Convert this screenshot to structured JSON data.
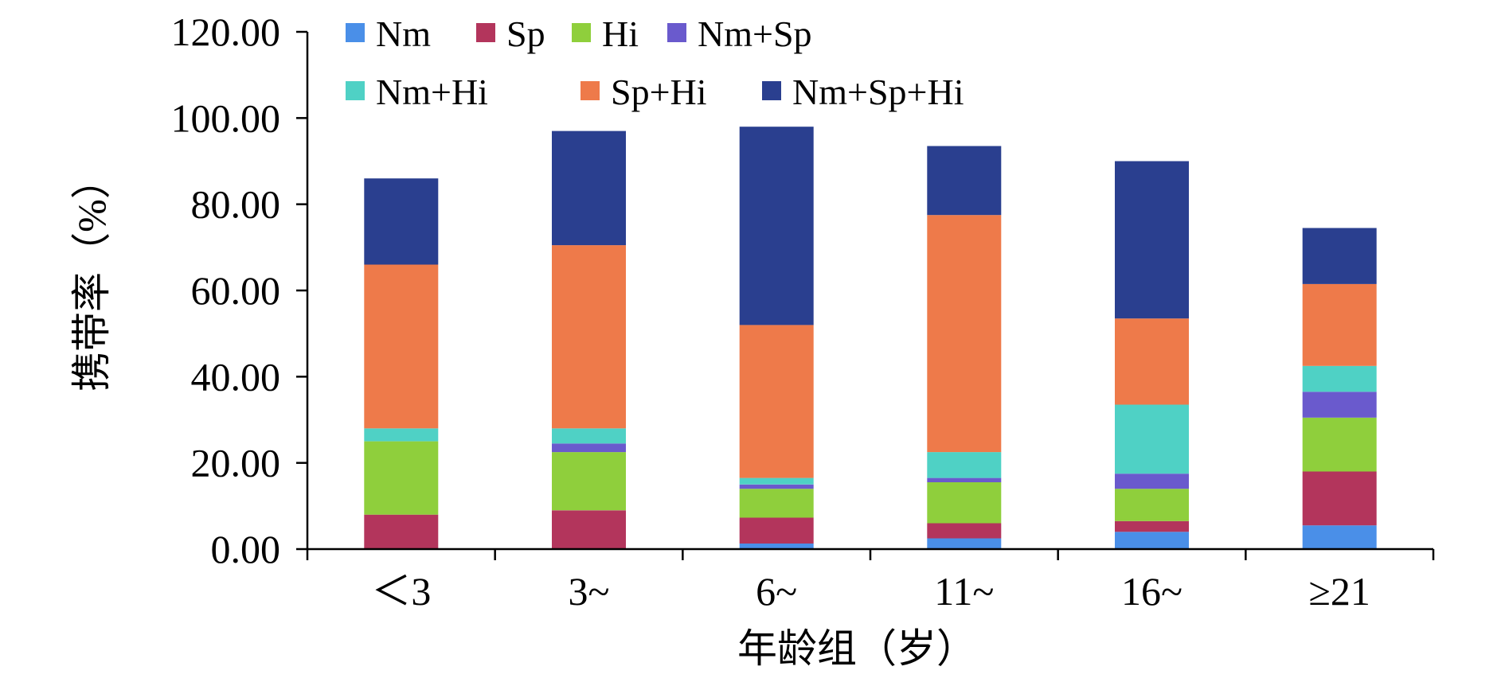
{
  "chart_data": {
    "type": "bar",
    "stacked": true,
    "xlabel": "年龄组（岁）",
    "ylabel": "携带率（%）",
    "ylim": [
      0,
      120
    ],
    "yticks": [
      "0.00",
      "20.00",
      "40.00",
      "60.00",
      "80.00",
      "100.00",
      "120.00"
    ],
    "categories": [
      "＜3",
      "3~",
      "6~",
      "11~",
      "16~",
      "≥21"
    ],
    "grid": false,
    "legend_position": "top",
    "series": [
      {
        "name": "Nm",
        "color": "#4a8fe8",
        "values": [
          0.0,
          0.0,
          1.3,
          2.5,
          4.0,
          5.5
        ]
      },
      {
        "name": "Sp",
        "color": "#b3355c",
        "values": [
          8.0,
          9.0,
          6.0,
          3.5,
          2.5,
          12.5
        ]
      },
      {
        "name": "Hi",
        "color": "#8fcf3c",
        "values": [
          17.0,
          13.5,
          6.7,
          9.5,
          7.5,
          12.5
        ]
      },
      {
        "name": "Nm+Sp",
        "color": "#6a5acd",
        "values": [
          0.0,
          2.0,
          1.0,
          1.0,
          3.5,
          6.0
        ]
      },
      {
        "name": "Nm+Hi",
        "color": "#4fd1c5",
        "values": [
          3.0,
          3.5,
          1.5,
          6.0,
          16.0,
          6.0
        ]
      },
      {
        "name": "Sp+Hi",
        "color": "#ee7a4a",
        "values": [
          38.0,
          42.5,
          35.5,
          55.0,
          20.0,
          19.0
        ]
      },
      {
        "name": "Nm+Sp+Hi",
        "color": "#2a3f8f",
        "values": [
          20.0,
          26.5,
          46.0,
          16.0,
          36.5,
          13.0
        ]
      }
    ]
  }
}
